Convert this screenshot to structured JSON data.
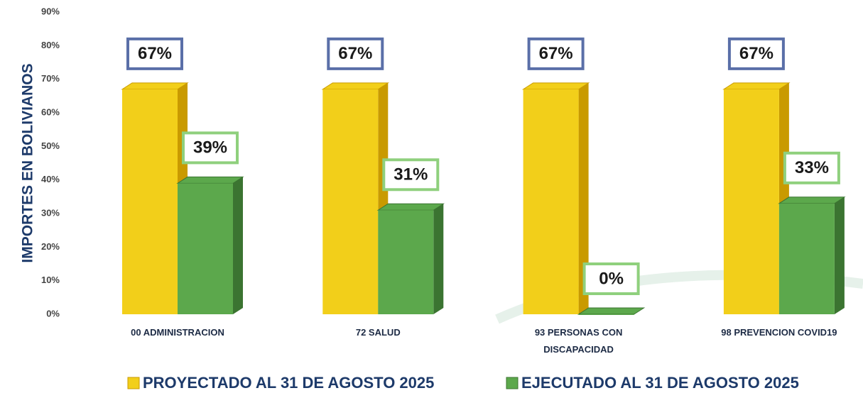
{
  "chart_data": {
    "type": "bar",
    "y_label": "IMPORTES EN BOLIVIANOS",
    "categories": [
      "00 ADMINISTRACION",
      "72 SALUD",
      "93 PERSONAS CON\nDISCAPACIDAD",
      "98 PREVENCION COVID19"
    ],
    "series": [
      {
        "name": "PROYECTADO AL 31 DE AGOSTO 2025",
        "color": "#f2cf1a",
        "side_color": "#c99a00",
        "label_border": "#5a6fa8",
        "values": [
          67,
          67,
          67,
          67
        ],
        "value_labels": [
          "67%",
          "67%",
          "67%",
          "67%"
        ]
      },
      {
        "name": "EJECUTADO AL 31 DE AGOSTO 2025",
        "color": "#5ca84c",
        "side_color": "#3b7431",
        "label_border": "#8fd07d",
        "values": [
          39,
          31,
          0,
          33
        ],
        "value_labels": [
          "39%",
          "31%",
          "0%",
          "33%"
        ]
      }
    ],
    "ylim": [
      0,
      90
    ],
    "yticks": [
      {
        "value": 0,
        "label": "0%"
      },
      {
        "value": 10,
        "label": "10%"
      },
      {
        "value": 20,
        "label": "20%"
      },
      {
        "value": 30,
        "label": "30%"
      },
      {
        "value": 40,
        "label": "40%"
      },
      {
        "value": 50,
        "label": "50%"
      },
      {
        "value": 60,
        "label": "60%"
      },
      {
        "value": 70,
        "label": "70%"
      },
      {
        "value": 80,
        "label": "80%"
      },
      {
        "value": 90,
        "label": "90%"
      }
    ],
    "grid": false
  }
}
